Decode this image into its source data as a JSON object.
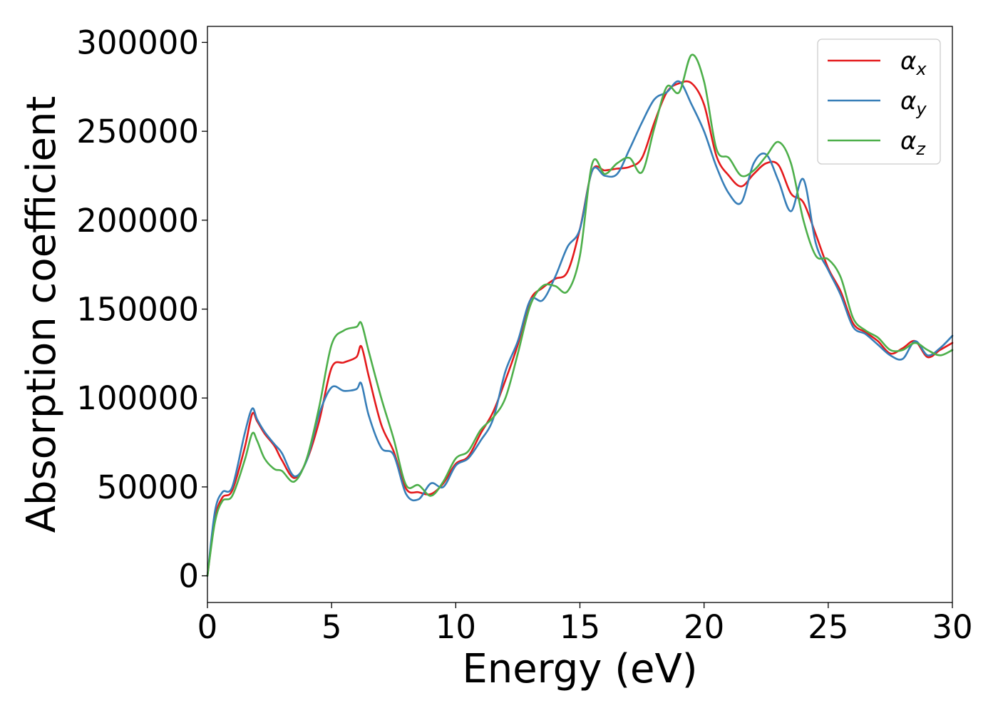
{
  "chart_data": {
    "type": "line",
    "title": "",
    "xlabel": "Energy (eV)",
    "ylabel": "Absorption coefficient",
    "xlim": [
      0,
      30
    ],
    "ylim": [
      -15000,
      309000
    ],
    "xticks": [
      0,
      5,
      10,
      15,
      20,
      25,
      30
    ],
    "yticks": [
      0,
      50000,
      100000,
      150000,
      200000,
      250000,
      300000
    ],
    "grid": false,
    "legend_position": "top-right",
    "series": [
      {
        "name": "α_x",
        "label_main": "α",
        "label_sub": "x",
        "color": "#e41a1c",
        "x": [
          0,
          0.3,
          0.6,
          1.0,
          1.5,
          1.8,
          2.0,
          2.3,
          2.7,
          3.0,
          3.5,
          4.0,
          4.5,
          5.0,
          5.5,
          6.0,
          6.2,
          6.5,
          7.0,
          7.5,
          8.0,
          8.5,
          9.0,
          9.5,
          10.0,
          10.5,
          11.0,
          11.5,
          12.0,
          12.5,
          13.0,
          13.5,
          14.0,
          14.5,
          15.0,
          15.5,
          16.0,
          16.5,
          17.0,
          17.5,
          18.0,
          18.5,
          19.0,
          19.5,
          20.0,
          20.5,
          21.0,
          21.5,
          22.0,
          22.5,
          23.0,
          23.5,
          24.0,
          24.5,
          25.0,
          25.5,
          26.0,
          26.5,
          27.0,
          27.5,
          28.0,
          28.5,
          29.0,
          29.5,
          30.0
        ],
        "y": [
          0,
          32000,
          44000,
          48000,
          72000,
          91000,
          87000,
          80000,
          73000,
          65000,
          55000,
          65000,
          87000,
          117000,
          120000,
          123000,
          129000,
          112000,
          85000,
          70000,
          49000,
          47000,
          46000,
          52000,
          63000,
          67000,
          80000,
          92000,
          110000,
          130000,
          155000,
          162000,
          167000,
          171000,
          195000,
          228000,
          228000,
          229000,
          230000,
          235000,
          255000,
          272000,
          277000,
          277000,
          265000,
          236000,
          225000,
          219000,
          226000,
          232000,
          231000,
          215000,
          210000,
          192000,
          173000,
          160000,
          142000,
          137000,
          132000,
          125000,
          128000,
          132000,
          123000,
          127000,
          131000
        ]
      },
      {
        "name": "α_y",
        "label_main": "α",
        "label_sub": "y",
        "color": "#377eb8",
        "x": [
          0,
          0.3,
          0.6,
          1.0,
          1.5,
          1.8,
          2.0,
          2.3,
          2.7,
          3.0,
          3.5,
          4.0,
          4.5,
          5.0,
          5.5,
          6.0,
          6.2,
          6.5,
          7.0,
          7.5,
          8.0,
          8.5,
          9.0,
          9.5,
          10.0,
          10.5,
          11.0,
          11.5,
          12.0,
          12.5,
          13.0,
          13.5,
          14.0,
          14.5,
          15.0,
          15.5,
          16.0,
          16.5,
          17.0,
          17.5,
          18.0,
          18.5,
          19.0,
          19.5,
          20.0,
          20.5,
          21.0,
          21.5,
          22.0,
          22.5,
          23.0,
          23.5,
          24.0,
          24.5,
          25.0,
          25.5,
          26.0,
          26.5,
          27.0,
          27.5,
          28.0,
          28.5,
          29.0,
          29.5,
          30.0
        ],
        "y": [
          0,
          36000,
          47000,
          50000,
          80000,
          94000,
          88000,
          81000,
          74000,
          69000,
          56000,
          65000,
          91000,
          106000,
          104000,
          105000,
          108000,
          90000,
          72000,
          68000,
          46000,
          43000,
          52000,
          50000,
          62000,
          66000,
          76000,
          88000,
          115000,
          132000,
          155000,
          155000,
          168000,
          185000,
          195000,
          228000,
          225000,
          226000,
          240000,
          255000,
          268000,
          272000,
          278000,
          265000,
          250000,
          230000,
          215000,
          210000,
          232000,
          237000,
          222000,
          205000,
          223000,
          187000,
          172000,
          158000,
          140000,
          136000,
          130000,
          124000,
          122000,
          132000,
          124000,
          128000,
          135000
        ]
      },
      {
        "name": "α_z",
        "label_main": "α",
        "label_sub": "z",
        "color": "#4daf4a",
        "x": [
          0,
          0.3,
          0.6,
          1.0,
          1.5,
          1.8,
          2.0,
          2.3,
          2.7,
          3.0,
          3.5,
          4.0,
          4.5,
          5.0,
          5.5,
          6.0,
          6.2,
          6.5,
          7.0,
          7.5,
          8.0,
          8.5,
          9.0,
          9.5,
          10.0,
          10.5,
          11.0,
          11.5,
          12.0,
          12.5,
          13.0,
          13.5,
          14.0,
          14.5,
          15.0,
          15.5,
          16.0,
          16.5,
          17.0,
          17.5,
          18.0,
          18.5,
          19.0,
          19.5,
          20.0,
          20.5,
          21.0,
          21.5,
          22.0,
          22.5,
          23.0,
          23.5,
          24.0,
          24.5,
          25.0,
          25.5,
          26.0,
          26.5,
          27.0,
          27.5,
          28.0,
          28.5,
          29.0,
          29.5,
          30.0
        ],
        "y": [
          0,
          30000,
          42000,
          45000,
          65000,
          80000,
          76000,
          66000,
          60000,
          59000,
          53000,
          66000,
          95000,
          130000,
          138000,
          140000,
          142000,
          126000,
          100000,
          77000,
          51000,
          51000,
          45000,
          53000,
          66000,
          70000,
          82000,
          89000,
          100000,
          125000,
          152000,
          163000,
          163000,
          160000,
          180000,
          232000,
          226000,
          232000,
          235000,
          227000,
          252000,
          275000,
          272000,
          293000,
          278000,
          240000,
          235000,
          225000,
          228000,
          236000,
          244000,
          232000,
          200000,
          180000,
          178000,
          168000,
          145000,
          138000,
          134000,
          127000,
          127000,
          131000,
          127000,
          124000,
          127000
        ]
      }
    ]
  }
}
